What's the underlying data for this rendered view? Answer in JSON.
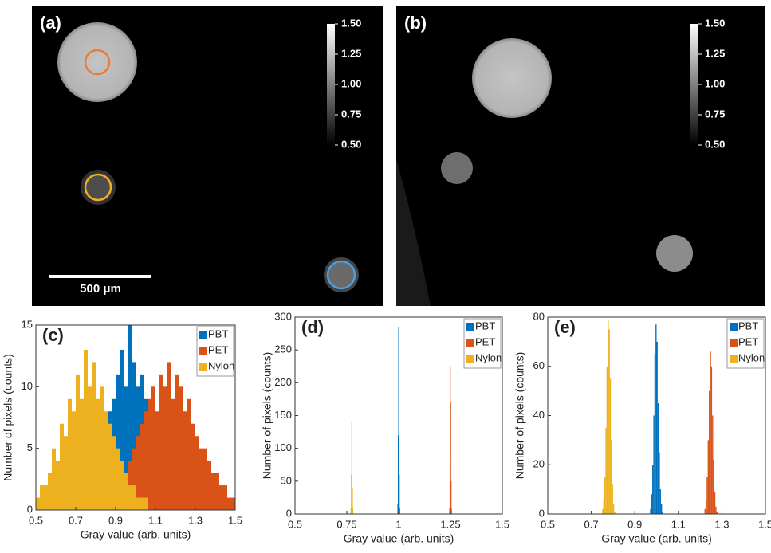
{
  "chart_data": [
    {
      "type": "image",
      "label": "(a)",
      "scale_bar": "500 μm",
      "colorbar_lim": [
        0.5,
        1.5
      ],
      "colorbar_ticks": [
        {
          "value": 0.5,
          "label": "0.50"
        },
        {
          "value": 0.75,
          "label": "0.75"
        },
        {
          "value": 1,
          "label": "1.00"
        },
        {
          "value": 1.25,
          "label": "1.25"
        },
        {
          "value": 1.5,
          "label": "1.50"
        }
      ]
    },
    {
      "type": "image",
      "label": "(b)",
      "colorbar_lim": [
        0.5,
        1.5
      ],
      "colorbar_ticks": [
        {
          "value": 0.5,
          "label": "0.50"
        },
        {
          "value": 0.75,
          "label": "0.75"
        },
        {
          "value": 1,
          "label": "1.00"
        },
        {
          "value": 1.25,
          "label": "1.25"
        },
        {
          "value": 1.5,
          "label": "1.50"
        }
      ]
    },
    {
      "type": "histogram",
      "label": "(c)",
      "xlabel": "Gray value (arb. units)",
      "ylabel": "Number of pixels (counts)",
      "xlim": [
        0.5,
        1.5
      ],
      "xticks": [
        0.5,
        0.7,
        0.9,
        1.1,
        1.3,
        1.5
      ],
      "ylim": [
        0,
        15
      ],
      "yticks": [
        0,
        5,
        10,
        15
      ],
      "legend": "top-right",
      "series": [
        {
          "name": "PBT",
          "color": "#0072bd",
          "bins": [
            0.5,
            0.52,
            0.54,
            0.56,
            0.58,
            0.6,
            0.62,
            0.64,
            0.66,
            0.68,
            0.7,
            0.72,
            0.74,
            0.76,
            0.78,
            0.8,
            0.82,
            0.84,
            0.86,
            0.88,
            0.9,
            0.92,
            0.94,
            0.96,
            0.98,
            1,
            1.02,
            1.04,
            1.06,
            1.08,
            1.1,
            1.12,
            1.14,
            1.16,
            1.18,
            1.2,
            1.22,
            1.24,
            1.26,
            1.28,
            1.3,
            1.32,
            1.34,
            1.36,
            1.38,
            1.4,
            1.42,
            1.44,
            1.46,
            1.48,
            1.5
          ],
          "values": [
            0,
            0,
            0,
            0,
            0,
            0,
            0,
            0,
            0,
            0,
            0,
            0,
            1,
            1,
            2,
            3,
            5,
            6,
            8,
            9,
            11,
            13,
            10,
            15,
            12,
            10,
            11,
            9,
            7,
            5,
            4,
            3,
            2,
            1,
            1,
            0,
            0,
            0,
            0,
            0,
            0,
            0,
            0,
            0,
            0,
            0,
            0,
            0,
            0,
            0
          ]
        },
        {
          "name": "PET",
          "color": "#d95319",
          "bins": [
            0.5,
            0.52,
            0.54,
            0.56,
            0.58,
            0.6,
            0.62,
            0.64,
            0.66,
            0.68,
            0.7,
            0.72,
            0.74,
            0.76,
            0.78,
            0.8,
            0.82,
            0.84,
            0.86,
            0.88,
            0.9,
            0.92,
            0.94,
            0.96,
            0.98,
            1,
            1.02,
            1.04,
            1.06,
            1.08,
            1.1,
            1.12,
            1.14,
            1.16,
            1.18,
            1.2,
            1.22,
            1.24,
            1.26,
            1.28,
            1.3,
            1.32,
            1.34,
            1.36,
            1.38,
            1.4,
            1.42,
            1.44,
            1.46,
            1.48,
            1.5
          ],
          "values": [
            0,
            0,
            0,
            0,
            0,
            0,
            0,
            0,
            0,
            0,
            0,
            0,
            0,
            0,
            0,
            0,
            0,
            0,
            1,
            1,
            2,
            3,
            3,
            4,
            5,
            6,
            7,
            8,
            9,
            10,
            8,
            11,
            10,
            12,
            9,
            11,
            10,
            8,
            9,
            7,
            6,
            5,
            5,
            4,
            3,
            3,
            2,
            2,
            1,
            1
          ]
        },
        {
          "name": "Nylon",
          "color": "#edb120",
          "bins": [
            0.5,
            0.52,
            0.54,
            0.56,
            0.58,
            0.6,
            0.62,
            0.64,
            0.66,
            0.68,
            0.7,
            0.72,
            0.74,
            0.76,
            0.78,
            0.8,
            0.82,
            0.84,
            0.86,
            0.88,
            0.9,
            0.92,
            0.94,
            0.96,
            0.98,
            1,
            1.02,
            1.04,
            1.06,
            1.08,
            1.1,
            1.12,
            1.14,
            1.16,
            1.18,
            1.2,
            1.22,
            1.24,
            1.26,
            1.28,
            1.3,
            1.32,
            1.34,
            1.36,
            1.38,
            1.4,
            1.42,
            1.44,
            1.46,
            1.48,
            1.5
          ],
          "values": [
            1,
            2,
            2,
            3,
            5,
            4,
            7,
            6,
            9,
            8,
            11,
            9,
            13,
            10,
            12,
            9,
            10,
            8,
            7,
            6,
            5,
            4,
            3,
            2,
            2,
            1,
            1,
            1,
            0,
            0,
            0,
            0,
            0,
            0,
            0,
            0,
            0,
            0,
            0,
            0,
            0,
            0,
            0,
            0,
            0,
            0,
            0,
            0,
            0,
            0
          ]
        }
      ]
    },
    {
      "type": "histogram",
      "label": "(d)",
      "xlabel": "Gray value (arb. units)",
      "ylabel": "Number of pixels (counts)",
      "xlim": [
        0.5,
        1.5
      ],
      "xticks": [
        0.5,
        0.75,
        1,
        1.25,
        1.5
      ],
      "ylim": [
        0,
        300
      ],
      "yticks": [
        0,
        50,
        100,
        150,
        200,
        250,
        300
      ],
      "legend": "top-right",
      "series": [
        {
          "name": "PBT",
          "color": "#0072bd",
          "bins": [
            0.994,
            0.996,
            0.998,
            1,
            1.002,
            1.004,
            1.006
          ],
          "values": [
            15,
            120,
            285,
            200,
            60,
            10
          ]
        },
        {
          "name": "PET",
          "color": "#d95319",
          "bins": [
            1.244,
            1.246,
            1.248,
            1.25,
            1.252,
            1.254,
            1.256
          ],
          "values": [
            10,
            80,
            225,
            170,
            50,
            8
          ]
        },
        {
          "name": "Nylon",
          "color": "#edb120",
          "bins": [
            0.768,
            0.77,
            0.772,
            0.774,
            0.776,
            0.778,
            0.78
          ],
          "values": [
            10,
            60,
            140,
            120,
            40,
            8
          ]
        }
      ]
    },
    {
      "type": "histogram",
      "label": "(e)",
      "xlabel": "Gray value (arb. units)",
      "ylabel": "Number of pixels (counts)",
      "xlim": [
        0.5,
        1.5
      ],
      "xticks": [
        0.5,
        0.7,
        0.9,
        1.1,
        1.3,
        1.5
      ],
      "ylim": [
        0,
        80
      ],
      "yticks": [
        0,
        20,
        40,
        60,
        80
      ],
      "legend": "top-right",
      "series": [
        {
          "name": "PBT",
          "color": "#0072bd",
          "bins": [
            0.97,
            0.975,
            0.98,
            0.985,
            0.99,
            0.995,
            1,
            1.005,
            1.01,
            1.015,
            1.02,
            1.025,
            1.03
          ],
          "values": [
            2,
            8,
            20,
            40,
            65,
            77,
            70,
            45,
            25,
            10,
            4,
            1
          ]
        },
        {
          "name": "PET",
          "color": "#d95319",
          "bins": [
            1.22,
            1.225,
            1.23,
            1.235,
            1.24,
            1.245,
            1.25,
            1.255,
            1.26,
            1.265,
            1.27,
            1.275,
            1.28
          ],
          "values": [
            2,
            6,
            15,
            30,
            50,
            66,
            60,
            40,
            22,
            9,
            3,
            1
          ]
        },
        {
          "name": "Nylon",
          "color": "#edb120",
          "bins": [
            0.75,
            0.755,
            0.76,
            0.765,
            0.77,
            0.775,
            0.78,
            0.785,
            0.79,
            0.795,
            0.8,
            0.805,
            0.81
          ],
          "values": [
            2,
            6,
            15,
            35,
            60,
            79,
            75,
            55,
            30,
            12,
            4,
            1
          ]
        }
      ]
    }
  ]
}
